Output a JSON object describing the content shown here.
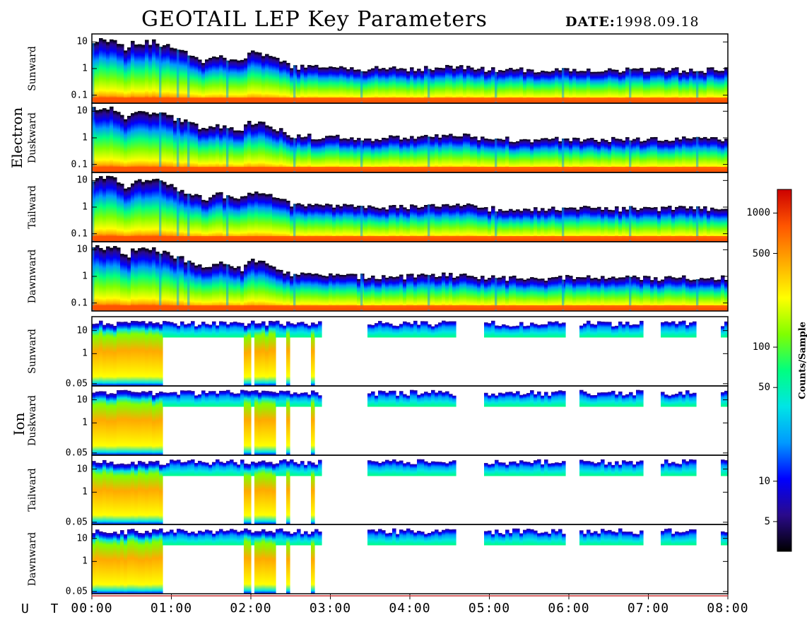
{
  "header": {
    "title": "GEOTAIL LEP Key Parameters",
    "date_label": "DATE:",
    "date_value": "1998.09.18"
  },
  "groups": [
    "Electron",
    "Ion"
  ],
  "colorbar": {
    "label": "Counts/Sample",
    "scale": "log",
    "range": [
      3,
      1500
    ],
    "ticks": [
      5,
      10,
      50,
      100,
      500,
      1000
    ],
    "colors": [
      "#000000",
      "#2a0a8a",
      "#0000ff",
      "#0099ff",
      "#00e5e5",
      "#00ff80",
      "#80ff00",
      "#ffff00",
      "#ffaa00",
      "#ff5500",
      "#cc0000"
    ]
  },
  "x_axis": {
    "axis_prefix": "U T",
    "ticks": [
      "00:00",
      "01:00",
      "02:00",
      "03:00",
      "04:00",
      "05:00",
      "06:00",
      "07:00",
      "08:00"
    ],
    "range_hours": [
      0,
      8
    ]
  },
  "chart_data": {
    "type": "heatmap",
    "x_label": "UT",
    "colorbar_label": "Counts/Sample",
    "panels": [
      {
        "group": "Electron",
        "label": "Sunward",
        "yscale": "log",
        "ylim": [
          0.05,
          20
        ],
        "yticks": [
          "10",
          "1",
          "0.1"
        ],
        "yvals": [
          10,
          1,
          0.1
        ]
      },
      {
        "group": "Electron",
        "label": "Duskward",
        "yscale": "log",
        "ylim": [
          0.05,
          20
        ],
        "yticks": [
          "10",
          "1",
          "0.1"
        ],
        "yvals": [
          10,
          1,
          0.1
        ]
      },
      {
        "group": "Electron",
        "label": "Tailward",
        "yscale": "log",
        "ylim": [
          0.05,
          20
        ],
        "yticks": [
          "10",
          "1",
          "0.1"
        ],
        "yvals": [
          10,
          1,
          0.1
        ]
      },
      {
        "group": "Electron",
        "label": "Dawnward",
        "yscale": "log",
        "ylim": [
          0.05,
          20
        ],
        "yticks": [
          "10",
          "1",
          "0.1"
        ],
        "yvals": [
          10,
          1,
          0.1
        ]
      },
      {
        "group": "Ion",
        "label": "Sunward",
        "yscale": "log",
        "ylim": [
          0.04,
          40
        ],
        "yticks": [
          "10",
          "1",
          "0.05"
        ],
        "yvals": [
          10,
          1,
          0.05
        ]
      },
      {
        "group": "Ion",
        "label": "Duskward",
        "yscale": "log",
        "ylim": [
          0.04,
          40
        ],
        "yticks": [
          "10",
          "1",
          "0.05"
        ],
        "yvals": [
          10,
          1,
          0.05
        ]
      },
      {
        "group": "Ion",
        "label": "Tailward",
        "yscale": "log",
        "ylim": [
          0.04,
          40
        ],
        "yticks": [
          "10",
          "1",
          "0.05"
        ],
        "yvals": [
          10,
          1,
          0.05
        ]
      },
      {
        "group": "Ion",
        "label": "Dawnward",
        "yscale": "log",
        "ylim": [
          0.04,
          40
        ],
        "yticks": [
          "10",
          "1",
          "0.05"
        ],
        "yvals": [
          10,
          1,
          0.05
        ]
      }
    ],
    "electron_upper_edge_keV": [
      {
        "t": 0.0,
        "e": 12
      },
      {
        "t": 0.3,
        "e": 12
      },
      {
        "t": 0.45,
        "e": 5
      },
      {
        "t": 0.5,
        "e": 10
      },
      {
        "t": 0.8,
        "e": 10
      },
      {
        "t": 1.0,
        "e": 6
      },
      {
        "t": 1.2,
        "e": 4
      },
      {
        "t": 1.4,
        "e": 2
      },
      {
        "t": 1.6,
        "e": 3
      },
      {
        "t": 1.9,
        "e": 2
      },
      {
        "t": 2.0,
        "e": 4
      },
      {
        "t": 2.2,
        "e": 3
      },
      {
        "t": 2.5,
        "e": 1.2
      },
      {
        "t": 3.0,
        "e": 1.1
      },
      {
        "t": 3.5,
        "e": 1.0
      },
      {
        "t": 4.0,
        "e": 1.0
      },
      {
        "t": 4.7,
        "e": 1.2
      },
      {
        "t": 5.0,
        "e": 0.9
      },
      {
        "t": 6.0,
        "e": 0.9
      },
      {
        "t": 7.0,
        "e": 0.9
      },
      {
        "t": 8.0,
        "e": 0.9
      }
    ],
    "ion_data_gaps_UT": [
      [
        2.9,
        3.45
      ],
      [
        4.6,
        4.95
      ],
      [
        5.95,
        6.15
      ],
      [
        6.95,
        7.15
      ],
      [
        7.6,
        7.9
      ]
    ],
    "ion_low_energy_coverage_UT": [
      [
        0.0,
        0.9
      ],
      [
        1.9,
        2.0
      ],
      [
        2.05,
        2.3
      ],
      [
        2.45,
        2.5
      ],
      [
        2.75,
        2.8
      ]
    ]
  }
}
